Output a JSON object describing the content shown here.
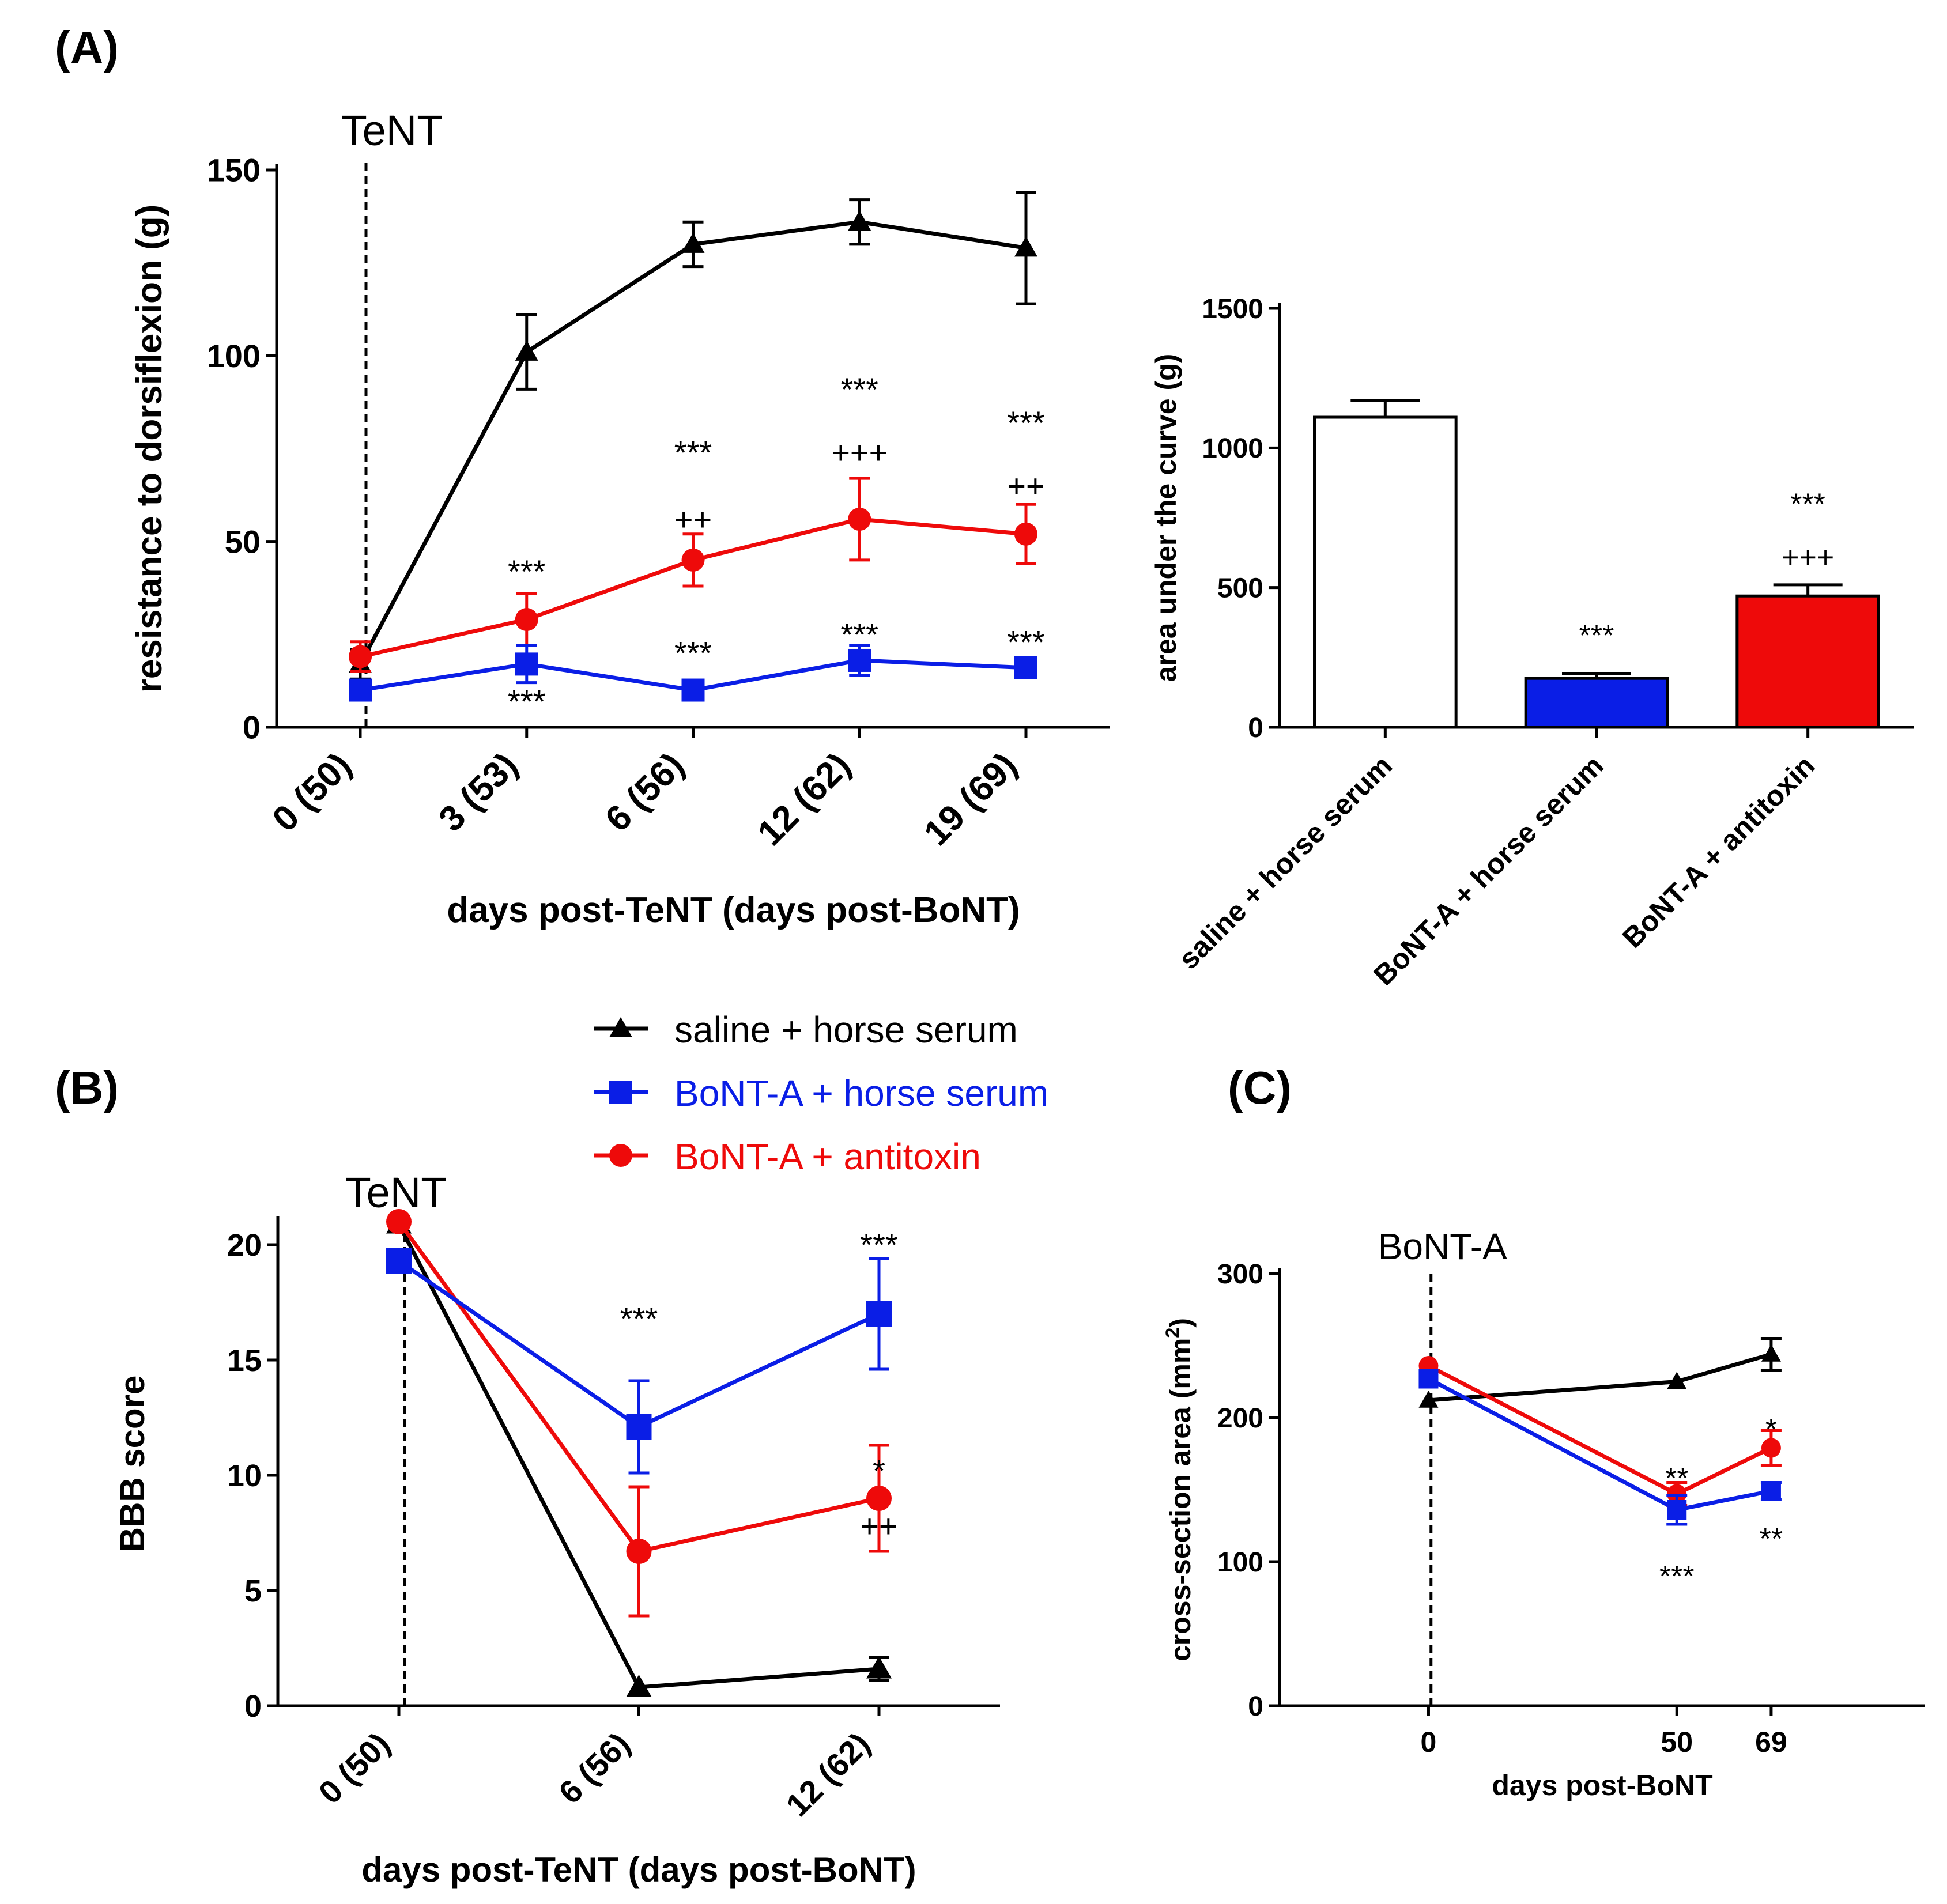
{
  "colors": {
    "saline": "#000000",
    "bonta_horse": "#0a1ee6",
    "bonta_anti": "#ee0a0a"
  },
  "legend": [
    {
      "label": "saline + horse serum",
      "color": "#000000",
      "marker": "triangle"
    },
    {
      "label": "BoNT-A + horse serum",
      "color": "#0a1ee6",
      "marker": "square"
    },
    {
      "label": "BoNT-A + antitoxin",
      "color": "#ee0a0a",
      "marker": "circle"
    }
  ],
  "chart_data": [
    {
      "id": "A-line",
      "panel_label": "(A)",
      "type": "line",
      "ylabel": "resistance to dorsiflexion (g)",
      "xlabel": "days post-TeNT (days post-BoNT)",
      "categories": [
        "0 (50)",
        "3 (53)",
        "6 (56)",
        "12 (62)",
        "19 (69)"
      ],
      "ylim": [
        0,
        150
      ],
      "yticks": [
        0,
        50,
        100,
        150
      ],
      "vline": {
        "category_index": 0,
        "label": "TeNT"
      },
      "series": [
        {
          "name": "saline + horse serum",
          "marker": "triangle",
          "values": [
            17,
            101,
            130,
            136,
            129
          ],
          "err": [
            4,
            10,
            6,
            6,
            15
          ]
        },
        {
          "name": "BoNT-A + antitoxin",
          "marker": "circle",
          "values": [
            19,
            29,
            45,
            56,
            52
          ],
          "err": [
            4,
            7,
            7,
            11,
            8
          ]
        },
        {
          "name": "BoNT-A + horse serum",
          "marker": "square",
          "values": [
            10,
            17,
            10,
            18,
            16
          ],
          "err": [
            2,
            5,
            2,
            4,
            2
          ]
        }
      ],
      "annotations": [
        {
          "x": 1,
          "y": 42,
          "text": "***"
        },
        {
          "x": 1,
          "y": 7,
          "text": "***"
        },
        {
          "x": 2,
          "y": 74,
          "text": "***"
        },
        {
          "x": 2,
          "y": 56,
          "text": "++"
        },
        {
          "x": 2,
          "y": 20,
          "text": "***"
        },
        {
          "x": 3,
          "y": 91,
          "text": "***"
        },
        {
          "x": 3,
          "y": 74,
          "text": "+++"
        },
        {
          "x": 3,
          "y": 25,
          "text": "***"
        },
        {
          "x": 4,
          "y": 82,
          "text": "***"
        },
        {
          "x": 4,
          "y": 65,
          "text": "++"
        },
        {
          "x": 4,
          "y": 23,
          "text": "***"
        }
      ]
    },
    {
      "id": "A-bar",
      "type": "bar",
      "ylabel": "area under the curve (g)",
      "xlabel": "",
      "categories": [
        "saline + horse serum",
        "BoNT-A + horse serum",
        "BoNT-A + antitoxin"
      ],
      "values": [
        1110,
        175,
        470
      ],
      "err": [
        60,
        18,
        40
      ],
      "bar_colors": [
        "#ffffff",
        "#0a1ee6",
        "#ee0a0a"
      ],
      "ylim": [
        0,
        1500
      ],
      "yticks": [
        0,
        500,
        1000,
        1500
      ],
      "annotations": [
        {
          "x": 1,
          "y": 330,
          "text": "***"
        },
        {
          "x": 2,
          "y": 800,
          "text": "***"
        },
        {
          "x": 2,
          "y": 610,
          "text": "+++"
        }
      ]
    },
    {
      "id": "B",
      "panel_label": "(B)",
      "type": "line",
      "ylabel": "BBB score",
      "xlabel": "days post-TeNT (days post-BoNT)",
      "categories": [
        "0 (50)",
        "6 (56)",
        "12 (62)"
      ],
      "ylim": [
        0,
        21
      ],
      "yticks": [
        0,
        5,
        10,
        15,
        20
      ],
      "vline": {
        "category_index": 0,
        "label": "TeNT"
      },
      "series": [
        {
          "name": "saline + horse serum",
          "marker": "triangle",
          "values": [
            20.9,
            0.8,
            1.6
          ],
          "err": [
            0,
            0,
            0.5
          ]
        },
        {
          "name": "BoNT-A + antitoxin",
          "marker": "circle",
          "values": [
            21.0,
            6.7,
            9.0
          ],
          "err": [
            0,
            2.8,
            2.3
          ]
        },
        {
          "name": "BoNT-A + horse serum",
          "marker": "square",
          "values": [
            19.3,
            12.1,
            17.0
          ],
          "err": [
            0,
            2.0,
            2.4
          ]
        }
      ],
      "annotations": [
        {
          "x": 1,
          "y": 16.8,
          "text": "***"
        },
        {
          "x": 2,
          "y": 20.0,
          "text": "***"
        },
        {
          "x": 2,
          "y": 10.2,
          "text": "*"
        },
        {
          "x": 2,
          "y": 7.8,
          "text": "++"
        }
      ]
    },
    {
      "id": "C",
      "panel_label": "(C)",
      "type": "line",
      "ylabel": "cross-section area (mm",
      "ylabel_sup": "2",
      "ylabel_close": ")",
      "xlabel": "days post-BoNT",
      "categories": [
        "0",
        "50",
        "69"
      ],
      "x": [
        0,
        50,
        69
      ],
      "xlim": [
        -30,
        100
      ],
      "ylim": [
        0,
        300
      ],
      "yticks": [
        0,
        100,
        200,
        300
      ],
      "vline": {
        "x": 0.5,
        "label": "BoNT-A"
      },
      "series": [
        {
          "name": "saline + horse serum",
          "marker": "triangle",
          "values": [
            212,
            225,
            244
          ],
          "err": [
            0,
            0,
            11
          ]
        },
        {
          "name": "BoNT-A + antitoxin",
          "marker": "circle",
          "values": [
            236,
            147,
            179
          ],
          "err": [
            0,
            8,
            12
          ]
        },
        {
          "name": "BoNT-A + horse serum",
          "marker": "square",
          "values": [
            227,
            136,
            149
          ],
          "err": [
            0,
            10,
            6
          ]
        }
      ],
      "annotations": [
        {
          "x": 50,
          "y": 158,
          "text": "**"
        },
        {
          "x": 50,
          "y": 90,
          "text": "***"
        },
        {
          "x": 69,
          "y": 192,
          "text": "*"
        },
        {
          "x": 69,
          "y": 116,
          "text": "**"
        }
      ]
    }
  ]
}
